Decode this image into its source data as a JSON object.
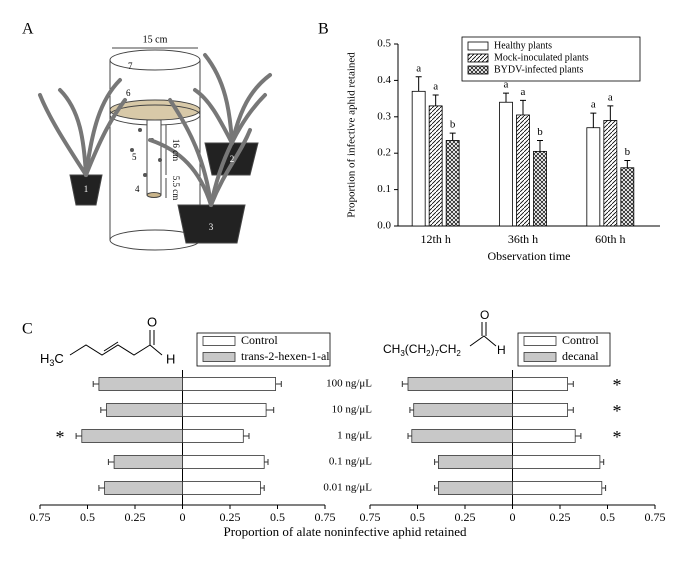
{
  "panel_a": {
    "label": "A",
    "width_label": "15 cm",
    "height_label": "16 cm",
    "small_label": "5.5 cm",
    "parts": [
      "1",
      "2",
      "3",
      "4",
      "5",
      "6",
      "7"
    ]
  },
  "panel_b": {
    "label": "B"
  },
  "panel_c": {
    "label": "C",
    "xlabel": "Proportion of alate noninfective aphid retained",
    "structures": [
      {
        "parts": [
          "H",
          "3",
          "C"
        ],
        "h": "H",
        "o": "O"
      },
      {
        "parts": [
          "CH",
          "3",
          "(CH",
          "2",
          ")",
          "7",
          "CH",
          "2"
        ],
        "h": "H",
        "o": "O"
      }
    ]
  },
  "chart_data": [
    {
      "type": "bar",
      "ylabel": "Proportion of  infective aphid  retained",
      "xlabel": "Observation time",
      "categories": [
        "12th h",
        "36th h",
        "60th h"
      ],
      "ylim": [
        0,
        0.5
      ],
      "yticks": [
        {
          "value": 0,
          "label": "0.0"
        },
        0.1,
        0.2,
        0.3,
        0.4,
        0.5
      ],
      "series": [
        {
          "name": "Healthy plants",
          "color": "#000000",
          "pattern": "none",
          "values": [
            0.37,
            0.34,
            0.27
          ],
          "errors": [
            0.04,
            0.025,
            0.04
          ],
          "letters": [
            "a",
            "a",
            "a"
          ]
        },
        {
          "name": "Mock-inoculated plants",
          "color": "#000000",
          "pattern": "diagonal",
          "values": [
            0.33,
            0.305,
            0.29
          ],
          "errors": [
            0.03,
            0.04,
            0.04
          ],
          "letters": [
            "a",
            "a",
            "a"
          ]
        },
        {
          "name": "BYDV-infected plants",
          "color": "#000000",
          "pattern": "crosshatch",
          "values": [
            0.235,
            0.205,
            0.16
          ],
          "errors": [
            0.02,
            0.03,
            0.02
          ],
          "letters": [
            "b",
            "b",
            "b"
          ]
        }
      ]
    },
    {
      "type": "diverging_bar",
      "categories": [
        "100 ng/μL",
        "10 ng/μL",
        "1 ng/μL",
        "0.1 ng/μL",
        "0.01 ng/μL"
      ],
      "xlim": [
        -0.75,
        0.75
      ],
      "xticks": [
        {
          "value": -0.75,
          "label": "0.75"
        },
        {
          "value": -0.5,
          "label": "0.5"
        },
        {
          "value": -0.25,
          "label": "0.25"
        },
        0,
        0.25,
        0.5,
        0.75
      ],
      "series": [
        {
          "name": "Control",
          "color": "#ffffff",
          "values": [
            0.49,
            0.44,
            0.32,
            0.43,
            0.41
          ],
          "errors": [
            0.03,
            0.04,
            0.03,
            0.02,
            0.02
          ],
          "markers": [
            null,
            null,
            null,
            null,
            null
          ]
        },
        {
          "name": "trans-2-hexen-1-al",
          "color": "#c8c8c8",
          "values": [
            -0.44,
            -0.4,
            -0.53,
            -0.36,
            -0.41
          ],
          "errors": [
            0.03,
            0.03,
            0.03,
            0.03,
            0.03
          ],
          "markers": [
            null,
            null,
            "*",
            null,
            null
          ]
        }
      ]
    },
    {
      "type": "diverging_bar",
      "xlim": [
        -0.75,
        0.75
      ],
      "xticks": [
        {
          "value": -0.75,
          "label": "0.75"
        },
        {
          "value": -0.5,
          "label": "0.5"
        },
        {
          "value": -0.25,
          "label": "0.25"
        },
        0,
        0.25,
        0.5,
        0.75
      ],
      "series": [
        {
          "name": "Control",
          "color": "#ffffff",
          "values": [
            0.29,
            0.29,
            0.33,
            0.46,
            0.47
          ],
          "errors": [
            0.03,
            0.03,
            0.03,
            0.02,
            0.02
          ],
          "markers": [
            "*",
            "*",
            "*",
            null,
            null
          ]
        },
        {
          "name": "decanal",
          "color": "#c8c8c8",
          "values": [
            -0.55,
            -0.52,
            -0.53,
            -0.39,
            -0.39
          ],
          "errors": [
            0.03,
            0.02,
            0.02,
            0.02,
            0.02
          ],
          "markers": [
            null,
            null,
            null,
            null,
            null
          ]
        }
      ]
    }
  ]
}
